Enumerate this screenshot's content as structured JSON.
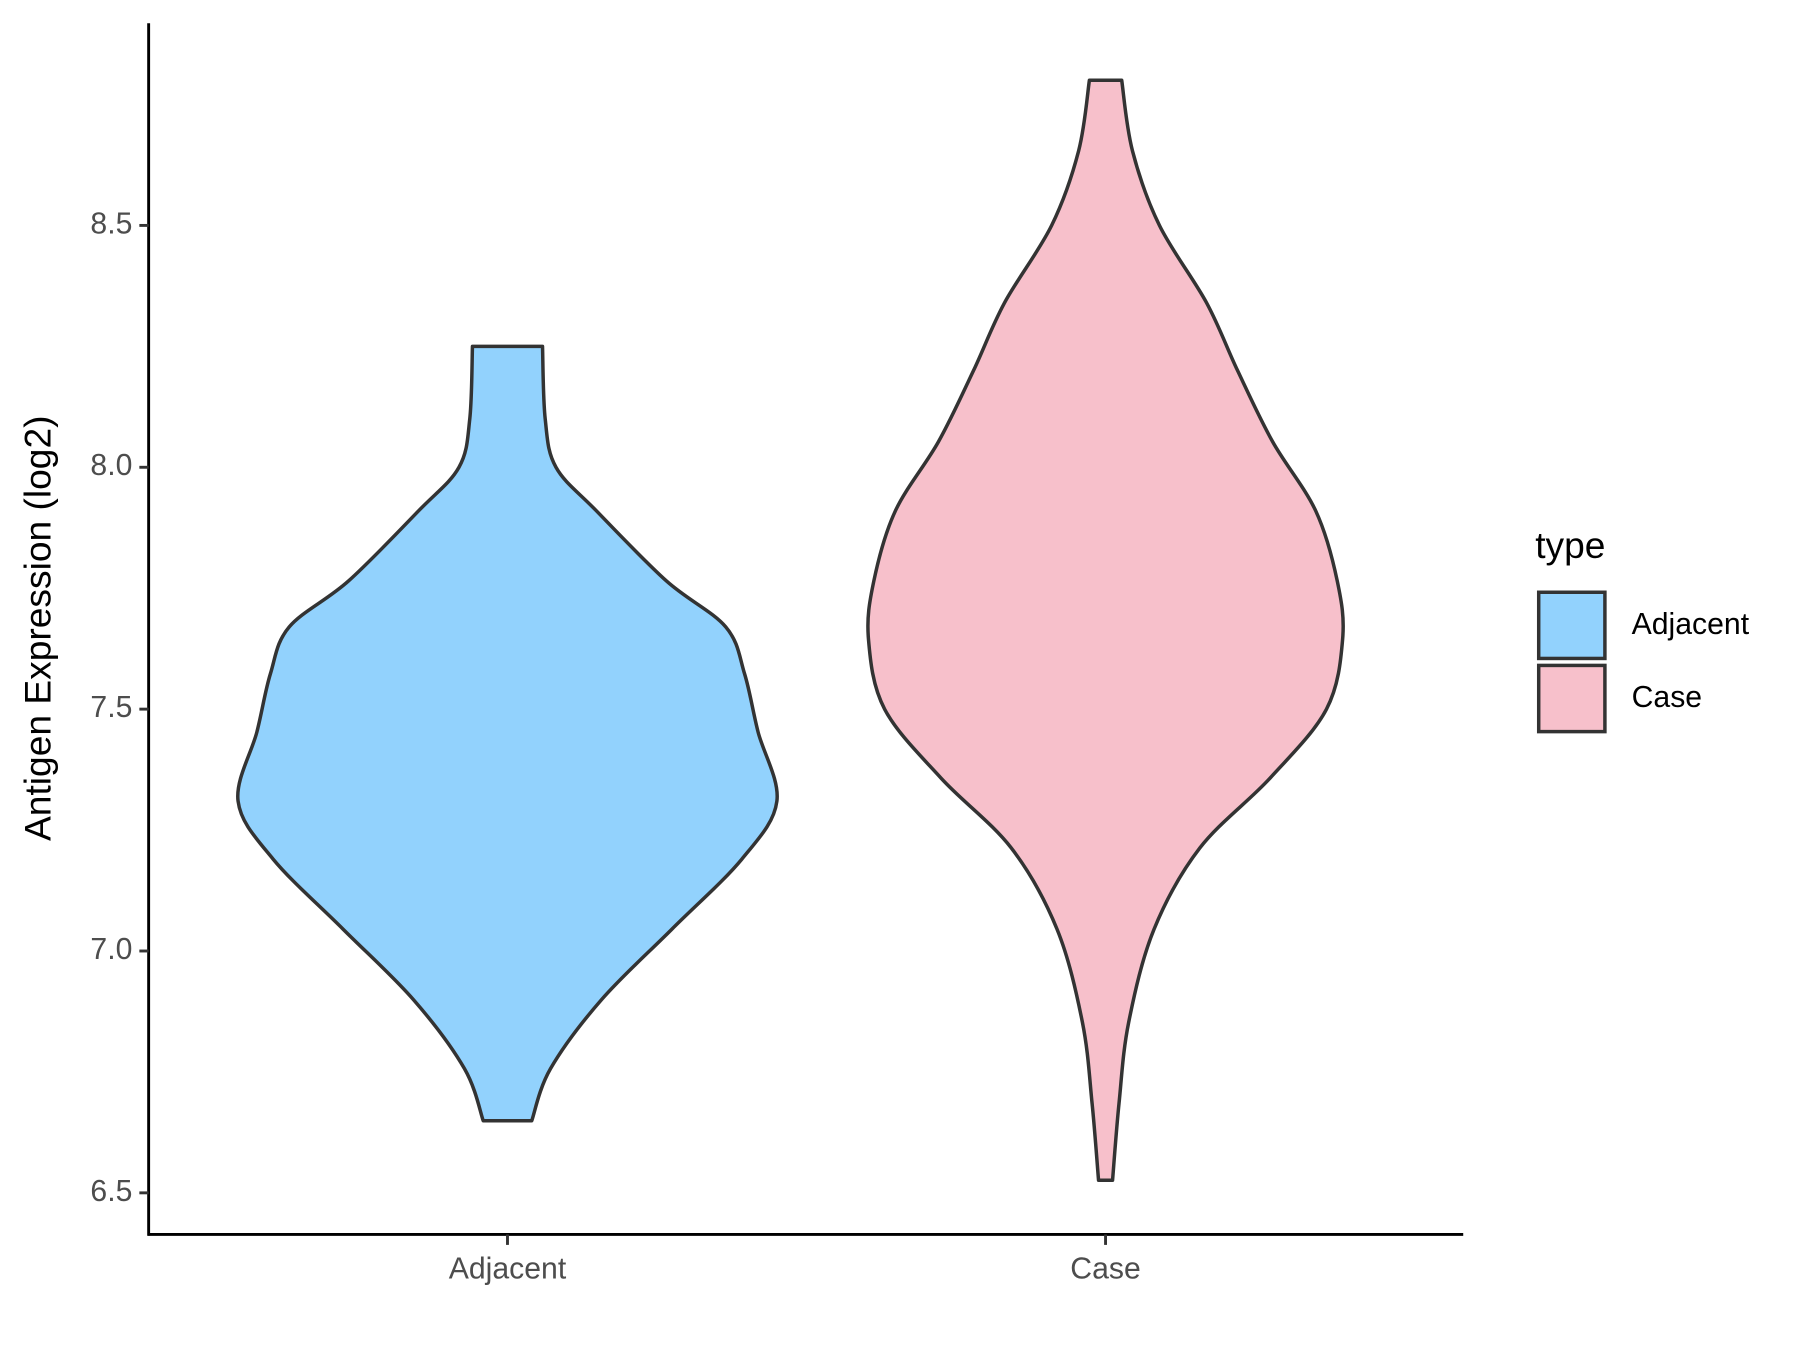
{
  "chart_data": {
    "type": "violin",
    "y_label": "Antigen Expression (log2)",
    "categories": [
      "Adjacent",
      "Case"
    ],
    "legend_title": "type",
    "legend_position": "right",
    "ylim": [
      6.414,
      8.918
    ],
    "yticks": [
      {
        "value": 6.5,
        "label": "6.5"
      },
      {
        "value": 7,
        "label": "7.0"
      },
      {
        "value": 7.5,
        "label": "7.5"
      },
      {
        "value": 8,
        "label": "8.0"
      },
      {
        "value": 8.5,
        "label": "8.5"
      }
    ],
    "series": [
      {
        "name": "Adjacent",
        "color": "#92d2fd",
        "y": [
          8.25,
          8.1,
          8.0,
          7.91,
          7.765,
          7.67,
          7.573,
          7.453,
          7.31,
          7.19,
          7.045,
          6.9,
          6.757,
          6.649
        ],
        "density": [
          0.13,
          0.14,
          0.18,
          0.33,
          0.59,
          0.81,
          0.88,
          0.93,
          1.0,
          0.87,
          0.61,
          0.35,
          0.16,
          0.09
        ]
      },
      {
        "name": "Case",
        "color": "#f7c0cb",
        "y": [
          8.8,
          8.654,
          8.5,
          8.34,
          8.2,
          8.053,
          7.91,
          7.765,
          7.645,
          7.5,
          7.357,
          7.213,
          7.045,
          6.853,
          6.685,
          6.526
        ],
        "density": [
          0.06,
          0.1,
          0.2,
          0.375,
          0.49,
          0.62,
          0.78,
          0.86,
          0.88,
          0.82,
          0.61,
          0.35,
          0.18,
          0.086,
          0.05,
          0.026
        ]
      }
    ]
  }
}
